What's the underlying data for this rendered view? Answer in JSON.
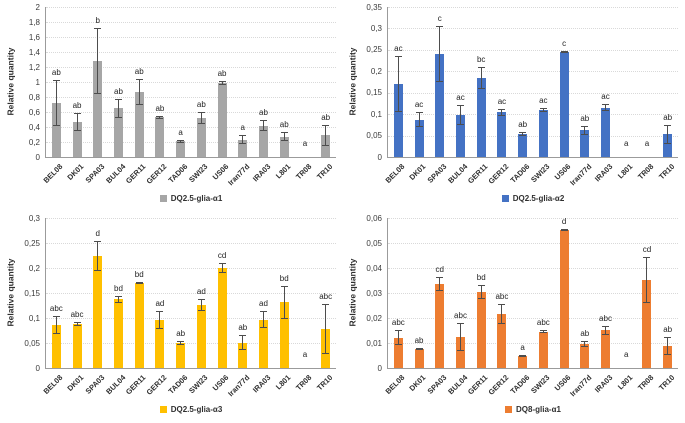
{
  "figure": {
    "description_visible_text": "Four bar charts of relative quantity per wheat accession"
  },
  "chart_data": [
    {
      "type": "bar",
      "legend": "DQ2.5-glia-α1",
      "color": "#a6a6a6",
      "title": "",
      "xlabel": "",
      "ylabel": "Relative quantity",
      "ylim": [
        0,
        2
      ],
      "grid": true,
      "legend_position": "bottom",
      "yticks": [
        0,
        0.2,
        0.4,
        0.6,
        0.8,
        1,
        1.2,
        1.4,
        1.6,
        1.8,
        2
      ],
      "ytick_labels": [
        "0",
        "0,2",
        "0,4",
        "0,6",
        "0,8",
        "1",
        "1,2",
        "1,4",
        "1,6",
        "1,8",
        "2"
      ],
      "categories": [
        "BEL08",
        "DK01",
        "SPA03",
        "BUL04",
        "GER11",
        "GER12",
        "TAD06",
        "SWI23",
        "US06",
        "Iran77d",
        "IRA03",
        "L801",
        "TR08",
        "TR10"
      ],
      "values": [
        0.72,
        0.47,
        1.28,
        0.65,
        0.87,
        0.53,
        0.21,
        0.52,
        0.99,
        0.23,
        0.42,
        0.27,
        0,
        0.29
      ],
      "errors": [
        0.31,
        0.12,
        0.44,
        0.13,
        0.17,
        0.02,
        0.02,
        0.08,
        0.03,
        0.06,
        0.07,
        0.06,
        0,
        0.14
      ],
      "sig_letters": [
        "ab",
        "ab",
        "b",
        "ab",
        "ab",
        "ab",
        "a",
        "ab",
        "ab",
        "a",
        "ab",
        "ab",
        "a",
        "ab"
      ]
    },
    {
      "type": "bar",
      "legend": "DQ2.5-glia-α2",
      "color": "#4472c4",
      "title": "",
      "xlabel": "",
      "ylabel": "Relative quantity",
      "ylim": [
        0,
        0.35
      ],
      "grid": true,
      "legend_position": "bottom",
      "yticks": [
        0,
        0.05,
        0.1,
        0.15,
        0.2,
        0.25,
        0.3,
        0.35
      ],
      "ytick_labels": [
        "0",
        "0,05",
        "0,1",
        "0,15",
        "0,2",
        "0,25",
        "0,3",
        "0,35"
      ],
      "categories": [
        "BEL08",
        "DK01",
        "SPA03",
        "BUL04",
        "GER11",
        "GER12",
        "TAD06",
        "SWI23",
        "US06",
        "Iran77d",
        "IRA03",
        "L801",
        "TR08",
        "TR10"
      ],
      "values": [
        0.17,
        0.087,
        0.241,
        0.098,
        0.185,
        0.104,
        0.054,
        0.109,
        0.245,
        0.062,
        0.115,
        0,
        0,
        0.053
      ],
      "errors": [
        0.065,
        0.017,
        0.065,
        0.023,
        0.026,
        0.008,
        0.004,
        0.005,
        0.003,
        0.01,
        0.008,
        0,
        0,
        0.022
      ],
      "sig_letters": [
        "ac",
        "ac",
        "c",
        "ac",
        "bc",
        "ac",
        "ab",
        "ac",
        "c",
        "ab",
        "ac",
        "a",
        "a",
        "ab"
      ]
    },
    {
      "type": "bar",
      "legend": "DQ2.5-glia-α3",
      "color": "#ffc000",
      "title": "",
      "xlabel": "",
      "ylabel": "Relative quantity",
      "ylim": [
        0,
        0.3
      ],
      "grid": true,
      "legend_position": "bottom",
      "yticks": [
        0,
        0.05,
        0.1,
        0.15,
        0.2,
        0.25,
        0.3
      ],
      "ytick_labels": [
        "0",
        "0,05",
        "0,1",
        "0,15",
        "0,2",
        "0,25",
        "0,3"
      ],
      "categories": [
        "BEL08",
        "DK01",
        "SPA03",
        "BUL04",
        "GER11",
        "GER12",
        "TAD06",
        "SWI23",
        "US06",
        "Iran77d",
        "IRA03",
        "L801",
        "TR08",
        "TR10"
      ],
      "values": [
        0.087,
        0.089,
        0.224,
        0.138,
        0.17,
        0.097,
        0.051,
        0.126,
        0.201,
        0.051,
        0.097,
        0.132,
        0,
        0.079
      ],
      "errors": [
        0.018,
        0.004,
        0.03,
        0.007,
        0.002,
        0.018,
        0.004,
        0.012,
        0.01,
        0.015,
        0.017,
        0.033,
        0,
        0.05
      ],
      "sig_letters": [
        "abc",
        "abc",
        "d",
        "bd",
        "bd",
        "ad",
        "ab",
        "ad",
        "cd",
        "ab",
        "ad",
        "bd",
        "a",
        "abc"
      ]
    },
    {
      "type": "bar",
      "legend": "DQ8-glia-α1",
      "color": "#ed7d31",
      "title": "",
      "xlabel": "",
      "ylabel": "Relative quantity",
      "ylim": [
        0,
        0.06
      ],
      "grid": true,
      "legend_position": "bottom",
      "yticks": [
        0,
        0.01,
        0.02,
        0.03,
        0.04,
        0.05,
        0.06
      ],
      "ytick_labels": [
        "0",
        "0,01",
        "0,02",
        "0,03",
        "0,04",
        "0,05",
        "0,06"
      ],
      "categories": [
        "BEL08",
        "DK01",
        "SPA03",
        "BUL04",
        "GER11",
        "GER12",
        "TAD06",
        "SWI23",
        "US06",
        "Iran77d",
        "IRA03",
        "L801",
        "TR08",
        "TR10"
      ],
      "values": [
        0.0122,
        0.0078,
        0.0335,
        0.0125,
        0.0305,
        0.0218,
        0.0048,
        0.0146,
        0.0552,
        0.0098,
        0.0152,
        0,
        0.0352,
        0.0088
      ],
      "errors": [
        0.0031,
        0.0004,
        0.0028,
        0.0057,
        0.0028,
        0.004,
        0.0004,
        0.0005,
        0.0005,
        0.0012,
        0.0018,
        0,
        0.0092,
        0.0037
      ],
      "sig_letters": [
        "abc",
        "ab",
        "cd",
        "abc",
        "bd",
        "abc",
        "a",
        "abc",
        "d",
        "ab",
        "abc",
        "a",
        "cd",
        "ab"
      ]
    }
  ]
}
